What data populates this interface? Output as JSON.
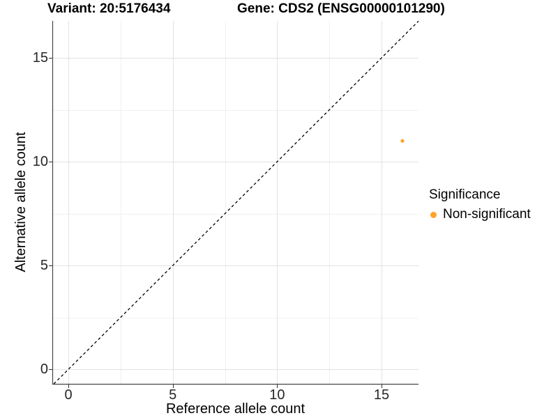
{
  "figure": {
    "title_left": "Variant: 20:5176434",
    "title_right": "Gene: CDS2 (ENSG00000101290)"
  },
  "chart_data": {
    "type": "scatter",
    "title": "Variant: 20:5176434 / Gene: CDS2 (ENSG00000101290)",
    "xlabel": "Reference allele count",
    "ylabel": "Alternative allele count",
    "x_range": [
      -0.77,
      16.77
    ],
    "y_range": [
      -0.7,
      16.78
    ],
    "x_ticks": [
      0,
      5,
      10,
      15
    ],
    "y_ticks": [
      0,
      5,
      10,
      15
    ],
    "x_minor_ticks": [
      2.5,
      7.5,
      12.5
    ],
    "y_minor_ticks": [
      2.5,
      7.5,
      12.5
    ],
    "grid": true,
    "identity_line": {
      "style": "dashed",
      "equation": "y = x"
    },
    "series": [
      {
        "name": "Non-significant",
        "color": "#FFA425",
        "points": [
          {
            "x": 16,
            "y": 11
          }
        ]
      }
    ],
    "legend": {
      "title": "Significance",
      "position": "right",
      "items": [
        {
          "label": "Non-significant",
          "color": "#FFA425"
        }
      ]
    }
  },
  "colors": {
    "background": "#FFFFFF",
    "grid_major": "#E2E2E2",
    "grid_minor": "#F0F0F0",
    "axis_line": "#444444",
    "tick_mark": "#333333",
    "identity_line": "#000000",
    "text": "#000000"
  }
}
